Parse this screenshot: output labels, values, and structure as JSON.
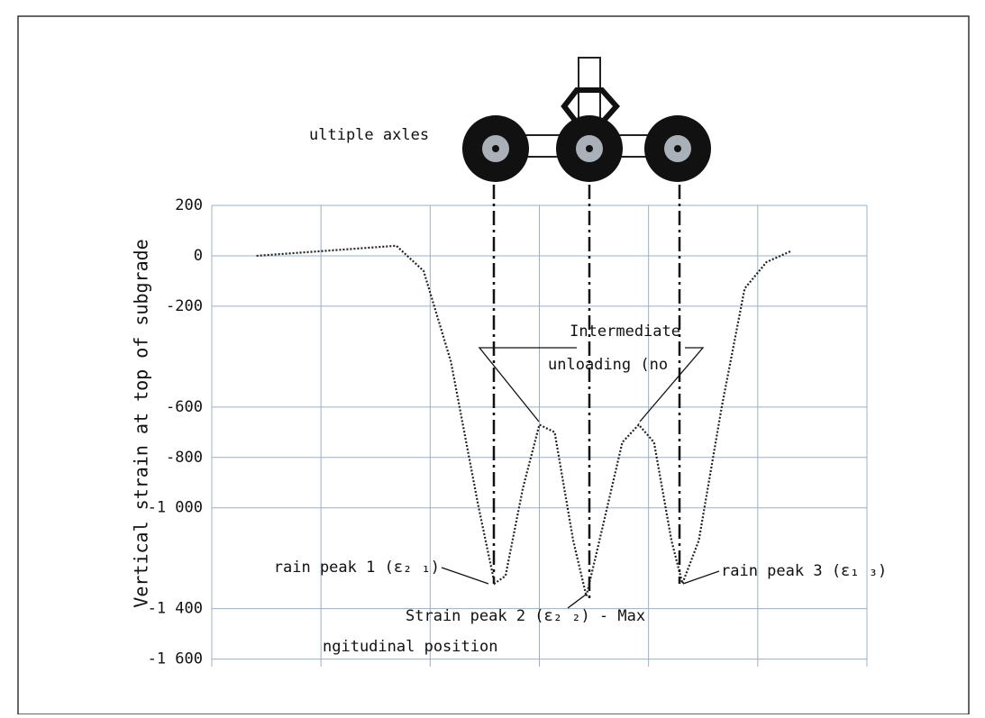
{
  "chart_data": {
    "type": "line",
    "y_label": "Vertical strain at top of subgrade",
    "x_label": "ngitudinal position",
    "annotations": [
      "ultiple axles",
      "Intermediate",
      "unloading (no",
      "rain peak 1 (ε₂ ₁)",
      "Strain peak 2 (ε₂ ₂) - Max",
      "rain peak 3 (ε₁ ₃)"
    ],
    "x": [
      0.41,
      1.69,
      1.94,
      2.19,
      2.44,
      2.59,
      2.69,
      2.85,
      3.0,
      3.14,
      3.31,
      3.43,
      3.55,
      3.76,
      3.91,
      4.05,
      4.21,
      4.31,
      4.46,
      4.67,
      4.88,
      5.08,
      5.31
    ],
    "values": [
      0,
      40,
      -60,
      -420,
      -990,
      -1300,
      -1270,
      -920,
      -670,
      -700,
      -1130,
      -1350,
      -1130,
      -740,
      -670,
      -740,
      -1130,
      -1300,
      -1130,
      -600,
      -130,
      -25,
      20
    ],
    "color": "#222222",
    "xlim": [
      0,
      6
    ],
    "ylim": [
      -1630,
      200
    ],
    "yticks": [
      200,
      0,
      -200,
      -600,
      -800,
      {
        "value": -1000,
        "label": "-1 000"
      },
      {
        "value": -1400,
        "label": "-1 400"
      },
      {
        "value": -1600,
        "label": "-1 600"
      }
    ],
    "grid": true
  }
}
